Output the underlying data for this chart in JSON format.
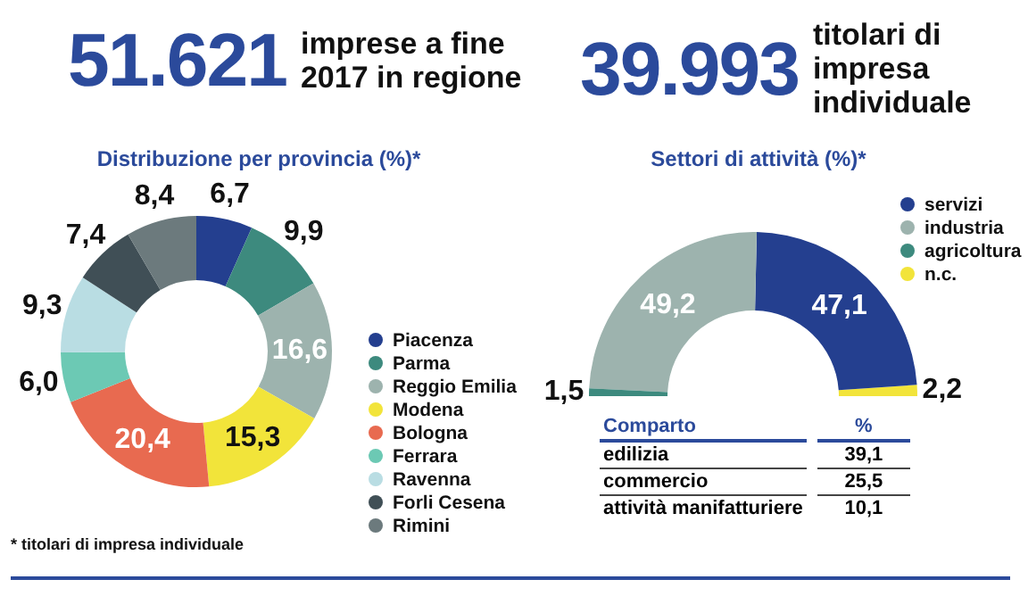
{
  "chart_data": [
    {
      "type": "other",
      "title": "51.621",
      "subtitle": "imprese a fine 2017 in regione"
    },
    {
      "type": "other",
      "title": "39.993",
      "subtitle": "titolari di impresa individuale"
    },
    {
      "type": "donut",
      "title": "Distribuzione per provincia (%)*",
      "categories": [
        "Piacenza",
        "Parma",
        "Reggio Emilia",
        "Modena",
        "Bologna",
        "Ferrara",
        "Ravenna",
        "Forli Cesena",
        "Rimini"
      ],
      "values": [
        6.7,
        9.9,
        16.6,
        15.3,
        20.4,
        6.0,
        9.3,
        7.4,
        8.4
      ],
      "colors": [
        "#243f8f",
        "#3d8a7e",
        "#9db3ae",
        "#f2e43a",
        "#e86a50",
        "#6cc9b4",
        "#b9dde3",
        "#404f56",
        "#6c7a7d"
      ],
      "value_labels": [
        "6,7",
        "9,9",
        "16,6",
        "15,3",
        "20,4",
        "6,0",
        "9,3",
        "7,4",
        "8,4"
      ],
      "legend": "right",
      "annotations": [
        "* titolari di impresa individuale"
      ]
    },
    {
      "type": "donut",
      "title": "Settori di attività (%)*",
      "categories": [
        "servizi",
        "industria",
        "agricoltura",
        "n.c."
      ],
      "values": [
        47.1,
        49.2,
        1.5,
        2.2
      ],
      "colors": [
        "#243f8f",
        "#9db3ae",
        "#3d8a7e",
        "#f2e43a"
      ],
      "value_labels": [
        "47,1",
        "49,2",
        "1,5",
        "2,2"
      ],
      "legend": "top right"
    },
    {
      "type": "other",
      "xlabel": "Comparto",
      "ylabel": "%",
      "categories": [
        "edilizia",
        "commercio",
        "attività manifatturiere"
      ],
      "values": [
        39.1,
        25.5,
        10.1
      ],
      "value_labels": [
        "39,1",
        "25,5",
        "10,1"
      ]
    }
  ]
}
